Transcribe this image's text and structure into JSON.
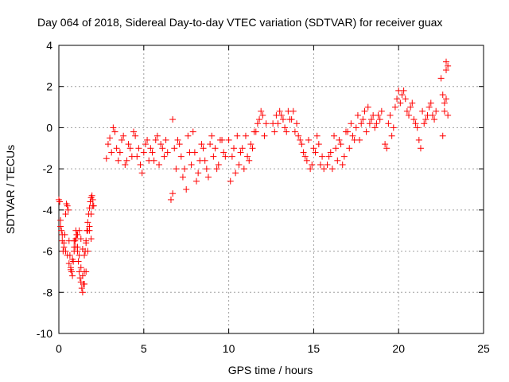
{
  "chart_data": {
    "type": "scatter",
    "title": "Day 064 of 2018, Sidereal Day-to-day VTEC variation (SDTVAR) for receiver guax",
    "xlabel": "GPS time / hours",
    "ylabel": "SDTVAR / TECUs",
    "xlim": [
      0,
      25
    ],
    "ylim": [
      -10,
      4
    ],
    "xticks": [
      0,
      5,
      10,
      15,
      20,
      25
    ],
    "yticks": [
      -10,
      -8,
      -6,
      -4,
      -2,
      0,
      2,
      4
    ],
    "grid": true,
    "legend": "none",
    "marker": "+",
    "series": [
      {
        "name": "SDTVAR",
        "color": "#ff0000",
        "x": [
          0.0,
          0.05,
          0.1,
          0.15,
          0.2,
          0.25,
          0.3,
          0.35,
          0.4,
          0.45,
          0.5,
          0.55,
          0.6,
          0.65,
          0.7,
          0.75,
          0.8,
          0.85,
          0.9,
          0.95,
          1.0,
          1.05,
          1.1,
          1.15,
          1.2,
          1.25,
          1.3,
          1.35,
          1.4,
          1.45,
          1.5,
          1.55,
          1.6,
          1.65,
          1.7,
          1.75,
          1.8,
          1.85,
          1.9,
          1.95,
          2.0,
          2.05,
          0.1,
          0.2,
          0.3,
          0.4,
          0.5,
          0.6,
          0.7,
          0.8,
          0.9,
          1.0,
          1.1,
          1.2,
          1.3,
          1.4,
          1.5,
          1.6,
          1.7,
          1.8,
          1.9,
          2.0,
          0.9,
          1.0,
          1.1,
          1.2,
          1.3,
          1.4,
          1.5,
          1.6,
          1.7,
          1.8,
          1.9,
          2.8,
          3.0,
          3.2,
          3.4,
          3.6,
          3.8,
          4.0,
          4.2,
          4.4,
          4.6,
          4.8,
          5.0,
          5.2,
          5.4,
          5.6,
          5.8,
          6.0,
          6.2,
          6.4,
          2.9,
          3.1,
          3.3,
          3.5,
          3.7,
          3.9,
          4.1,
          4.3,
          4.5,
          4.7,
          4.9,
          5.1,
          5.3,
          5.5,
          5.7,
          5.9,
          6.1,
          6.3,
          6.6,
          6.7,
          6.8,
          6.9,
          7.0,
          7.2,
          7.4,
          7.6,
          7.8,
          8.0,
          8.2,
          8.4,
          8.6,
          8.8,
          9.0,
          9.2,
          9.4,
          9.6,
          9.8,
          6.7,
          7.1,
          7.3,
          7.5,
          7.7,
          7.9,
          8.1,
          8.3,
          8.5,
          8.7,
          8.9,
          9.1,
          9.3,
          9.5,
          9.7,
          10.0,
          10.2,
          10.4,
          10.6,
          10.8,
          11.0,
          11.2,
          11.4,
          11.6,
          11.8,
          12.0,
          12.2,
          10.1,
          10.3,
          10.5,
          10.7,
          10.9,
          11.1,
          11.3,
          11.5,
          11.7,
          11.9,
          12.1,
          12.6,
          12.8,
          13.0,
          13.2,
          13.4,
          13.6,
          13.8,
          14.0,
          14.2,
          14.4,
          14.6,
          14.8,
          15.0,
          15.2,
          15.4,
          15.6,
          12.7,
          12.9,
          13.1,
          13.3,
          13.5,
          13.7,
          13.9,
          14.1,
          14.3,
          14.5,
          14.7,
          14.9,
          15.1,
          15.3,
          15.5,
          15.8,
          16.0,
          16.2,
          16.4,
          16.6,
          16.8,
          17.0,
          17.2,
          17.4,
          17.6,
          17.8,
          18.0,
          18.2,
          18.4,
          18.6,
          18.8,
          19.0,
          15.9,
          16.1,
          16.3,
          16.5,
          16.7,
          16.9,
          17.1,
          17.3,
          17.5,
          17.7,
          17.9,
          18.1,
          18.3,
          18.5,
          18.7,
          18.9,
          19.2,
          19.4,
          19.6,
          19.8,
          20.0,
          20.2,
          20.4,
          20.6,
          20.8,
          21.0,
          21.2,
          21.4,
          21.6,
          21.8,
          22.0,
          22.2,
          19.3,
          19.5,
          19.7,
          19.9,
          20.1,
          20.3,
          20.5,
          20.7,
          20.9,
          21.1,
          21.3,
          21.5,
          21.7,
          21.9,
          22.1,
          22.5,
          22.6,
          22.7,
          22.8,
          22.9,
          22.7,
          22.8,
          22.9,
          22.6,
          22.8
        ],
        "y": [
          -3.5,
          -3.6,
          -4.5,
          -5.0,
          -5.5,
          -6.0,
          -5.8,
          -5.2,
          -4.2,
          -3.7,
          -3.8,
          -4.0,
          -5.5,
          -6.2,
          -6.8,
          -7.0,
          -7.2,
          -6.5,
          -6.0,
          -5.5,
          -5.0,
          -5.2,
          -6.0,
          -6.5,
          -7.0,
          -7.3,
          -7.5,
          -7.8,
          -8.0,
          -7.6,
          -7.0,
          -6.0,
          -5.5,
          -5.0,
          -4.6,
          -4.2,
          -3.9,
          -3.6,
          -3.4,
          -3.3,
          -3.5,
          -3.8,
          -4.8,
          -5.2,
          -5.6,
          -6.0,
          -6.2,
          -6.6,
          -6.9,
          -6.4,
          -5.8,
          -5.4,
          -5.8,
          -6.2,
          -6.8,
          -7.2,
          -7.6,
          -7.0,
          -6.0,
          -5.0,
          -4.2,
          -3.8,
          -5.5,
          -5.8,
          -5.2,
          -5.0,
          -5.4,
          -5.9,
          -6.2,
          -5.6,
          -5.0,
          -4.8,
          -5.4,
          -1.5,
          -0.5,
          0.0,
          -1.0,
          -1.2,
          -0.4,
          -1.6,
          -1.0,
          -0.2,
          -1.4,
          -1.8,
          -1.2,
          -0.6,
          -1.0,
          -1.6,
          -0.4,
          -0.8,
          -1.4,
          -1.2,
          -0.8,
          -1.2,
          -0.2,
          -1.6,
          -0.6,
          -1.8,
          -0.8,
          -1.4,
          -0.4,
          -1.0,
          -2.2,
          -0.8,
          -1.6,
          -1.2,
          -0.6,
          -1.8,
          -1.0,
          -0.6,
          -3.5,
          -3.2,
          -1.0,
          -2.0,
          -0.6,
          -1.4,
          -2.0,
          -0.4,
          -1.8,
          -1.2,
          -2.2,
          -0.8,
          -1.6,
          -2.4,
          -0.4,
          -1.0,
          -1.8,
          -0.6,
          -1.4,
          0.4,
          -0.8,
          -2.4,
          -3.0,
          -1.2,
          -0.2,
          -2.6,
          -1.6,
          -1.0,
          -2.0,
          -0.8,
          -1.4,
          -2.0,
          -0.6,
          -1.2,
          -0.6,
          -1.4,
          -2.2,
          -1.8,
          -1.0,
          -0.4,
          -1.6,
          -1.0,
          -0.2,
          0.4,
          0.6,
          0.2,
          -2.6,
          -1.0,
          -0.4,
          -1.2,
          -2.0,
          -1.4,
          -0.8,
          -0.2,
          0.2,
          0.8,
          -0.4,
          0.2,
          0.6,
          0.8,
          0.4,
          -0.2,
          0.4,
          0.8,
          0.2,
          -0.6,
          -1.2,
          -1.6,
          -2.0,
          -1.0,
          -0.4,
          -1.8,
          -2.0,
          -0.2,
          0.2,
          0.6,
          0.0,
          0.8,
          0.4,
          -0.2,
          -0.4,
          -0.8,
          -1.4,
          -0.6,
          -1.8,
          -1.2,
          -0.8,
          -1.4,
          -1.8,
          -1.2,
          -0.4,
          -1.6,
          -0.8,
          -1.4,
          -0.2,
          0.2,
          -0.6,
          0.6,
          0.2,
          0.8,
          1.0,
          0.4,
          0.0,
          0.6,
          0.8,
          -1.4,
          -2.0,
          -1.0,
          -0.6,
          -1.8,
          -0.2,
          -1.0,
          -0.4,
          0.0,
          -0.6,
          0.4,
          -0.2,
          0.2,
          0.6,
          0.2,
          0.4,
          -0.8,
          0.2,
          -0.4,
          1.0,
          1.8,
          1.6,
          1.4,
          0.6,
          1.2,
          0.2,
          -0.6,
          0.8,
          0.4,
          1.0,
          0.6,
          0.8,
          -1.0,
          0.6,
          0.0,
          1.4,
          1.2,
          1.8,
          0.8,
          1.0,
          0.4,
          0.0,
          -1.0,
          0.2,
          0.6,
          1.2,
          0.4,
          2.4,
          1.6,
          0.8,
          3.2,
          3.0,
          1.2,
          2.8,
          0.6,
          -0.4,
          1.4
        ]
      }
    ]
  }
}
